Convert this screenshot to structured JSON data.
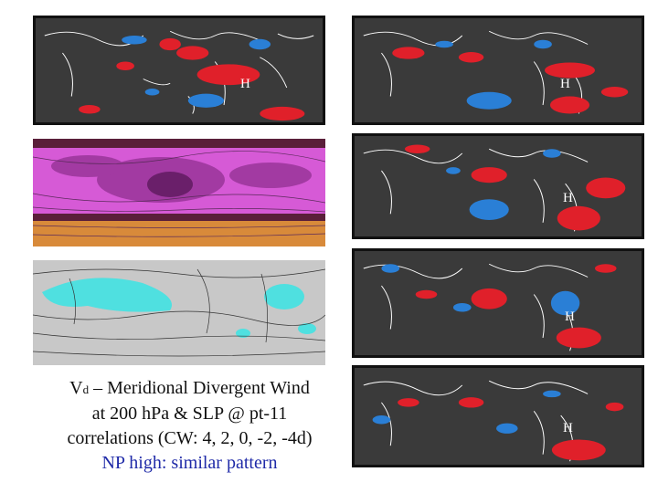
{
  "caption": {
    "line1_v": "V",
    "line1_sub": "d",
    "line1_rest": " – Meridional Divergent Wind",
    "line2": "at 200 hPa & SLP @ pt-11",
    "line3": "correlations (CW: 4, 2, 0, -2, -4d)",
    "line4": "NP high: similar pattern"
  },
  "map_labels": {
    "panel_a": "H",
    "panel_b": "H",
    "panel_c": "H",
    "panel_d": "H",
    "panel_e": "H"
  },
  "colors": {
    "dark_map": "#3a3a3a",
    "positive": "#e0202a",
    "negative": "#2a7fd6",
    "coast": "#ffffff",
    "magenta": "#d65ad6",
    "orange": "#d88a3a",
    "gray_map": "#c8c8c8",
    "cyan": "#4fe0e0",
    "np_text": "#1f2aa8"
  }
}
